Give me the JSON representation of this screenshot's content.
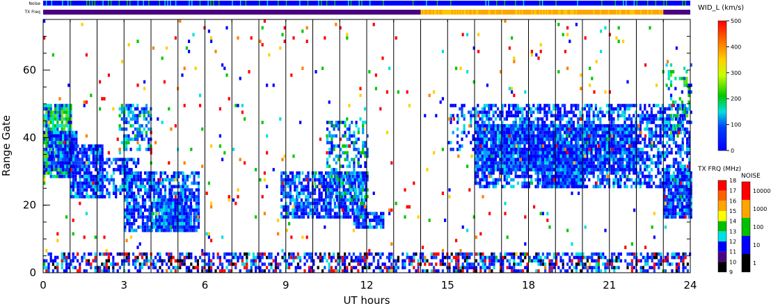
{
  "chart_data": {
    "type": "heatmap",
    "xlabel": "UT hours",
    "ylabel": "Range Gate",
    "xlim": [
      0,
      24
    ],
    "ylim": [
      0,
      75
    ],
    "x_ticks": [
      "0",
      "3",
      "6",
      "9",
      "12",
      "15",
      "18",
      "21",
      "24"
    ],
    "y_ticks": [
      "0",
      "20",
      "40",
      "60"
    ],
    "vertical_lines_hours": [
      1,
      2,
      3,
      4,
      5,
      6,
      7,
      8,
      9,
      10,
      11,
      12,
      13,
      14,
      15,
      16,
      17,
      18,
      19,
      20,
      21,
      22,
      23
    ],
    "noise_bar_label": "Noise",
    "txfreq_bar_label": "TX Freq",
    "txfreq_segments": [
      {
        "start": 0,
        "end": 14,
        "color": "#4b0082"
      },
      {
        "start": 14,
        "end": 23,
        "color": "#ffa500"
      },
      {
        "start": 23,
        "end": 24,
        "color": "#4b0082"
      }
    ],
    "scatter_regions": [
      {
        "t0": 0.0,
        "t1": 1.0,
        "g0": 28,
        "g1": 50,
        "density": 0.85,
        "palette": "green"
      },
      {
        "t0": 0.2,
        "t1": 1.2,
        "g0": 30,
        "g1": 42,
        "density": 0.9,
        "palette": "blue"
      },
      {
        "t0": 1.0,
        "t1": 2.2,
        "g0": 22,
        "g1": 38,
        "density": 0.85,
        "palette": "blue"
      },
      {
        "t0": 2.0,
        "t1": 3.5,
        "g0": 22,
        "g1": 34,
        "density": 0.6,
        "palette": "blue"
      },
      {
        "t0": 3.0,
        "t1": 5.8,
        "g0": 12,
        "g1": 30,
        "density": 0.75,
        "palette": "blue"
      },
      {
        "t0": 4.2,
        "t1": 5.5,
        "g0": 12,
        "g1": 22,
        "density": 0.95,
        "palette": "blue"
      },
      {
        "t0": 2.8,
        "t1": 4.0,
        "g0": 36,
        "g1": 50,
        "density": 0.55,
        "palette": "cyan"
      },
      {
        "t0": 8.8,
        "t1": 12.0,
        "g0": 16,
        "g1": 30,
        "density": 0.75,
        "palette": "blue"
      },
      {
        "t0": 10.5,
        "t1": 12.0,
        "g0": 20,
        "g1": 45,
        "density": 0.45,
        "palette": "cyan"
      },
      {
        "t0": 11.5,
        "t1": 12.6,
        "g0": 13,
        "g1": 18,
        "density": 0.8,
        "palette": "blue"
      },
      {
        "t0": 15.0,
        "t1": 16.0,
        "g0": 36,
        "g1": 50,
        "density": 0.3,
        "palette": "blue"
      },
      {
        "t0": 16.0,
        "t1": 24.0,
        "g0": 25,
        "g1": 50,
        "density": 0.6,
        "palette": "blue"
      },
      {
        "t0": 16.0,
        "t1": 22.0,
        "g0": 30,
        "g1": 44,
        "density": 0.9,
        "palette": "blue"
      },
      {
        "t0": 18.5,
        "t1": 20.0,
        "g0": 25,
        "g1": 38,
        "density": 0.9,
        "palette": "blue"
      },
      {
        "t0": 23.0,
        "t1": 24.0,
        "g0": 16,
        "g1": 30,
        "density": 0.9,
        "palette": "blue"
      },
      {
        "t0": 23.0,
        "t1": 24.0,
        "g0": 40,
        "g1": 62,
        "density": 0.25,
        "palette": "green"
      },
      {
        "t0": 0.0,
        "t1": 24.0,
        "g0": 0,
        "g1": 6,
        "density": 0.55,
        "palette": "ground"
      },
      {
        "t0": 0.0,
        "t1": 24.0,
        "g0": 0,
        "g1": 75,
        "density": 0.02,
        "palette": "noise"
      }
    ]
  },
  "colorbars": {
    "width": {
      "label": "WID_L (km/s)",
      "ticks": [
        "0",
        "100",
        "200",
        "300",
        "400",
        "500"
      ]
    },
    "txfreq": {
      "label": "TX FRQ (MHz)",
      "ticks": [
        "9",
        "10",
        "11",
        "12",
        "13",
        "14",
        "15",
        "16",
        "17",
        "18"
      ],
      "colors": [
        "#000000",
        "#4b0082",
        "#0000ff",
        "#00e0e0",
        "#00c000",
        "#ffff00",
        "#ffa500",
        "#ff6000",
        "#ff0000"
      ]
    },
    "noise": {
      "label": "NOISE",
      "ticks": [
        "1",
        "10",
        "100",
        "1000",
        "10000"
      ],
      "colors": [
        "#000000",
        "#0000ff",
        "#00c000",
        "#ffa500",
        "#ff0000"
      ]
    }
  }
}
